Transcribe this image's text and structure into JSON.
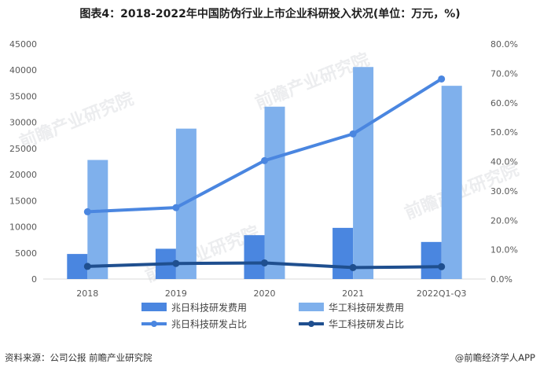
{
  "title": "图表4：2018-2022年中国防伪行业上市企业科研投入状况(单位：万元，%)",
  "source": "资料来源：公司公报 前瞻产业研究院",
  "brand": "@前瞻经济学人APP",
  "watermark": "前瞻产业研究院",
  "colors": {
    "bar_zhaori": "#4a86e0",
    "bar_huagong": "#7fb0ec",
    "line_zhaori": "#4a86e0",
    "line_huagong": "#1f4f8f"
  },
  "chart_data": {
    "type": "bar",
    "categories": [
      "2018",
      "2019",
      "2020",
      "2021",
      "2022Q1-Q3"
    ],
    "series": [
      {
        "name": "兆日科技研发费用",
        "type": "bar",
        "axis": "left",
        "values": [
          4800,
          5800,
          8400,
          9800,
          7100
        ]
      },
      {
        "name": "华工科技研发费用",
        "type": "bar",
        "axis": "left",
        "values": [
          22800,
          28800,
          33000,
          40600,
          37000
        ]
      },
      {
        "name": "兆日科技研发占比",
        "type": "line",
        "axis": "right",
        "values": [
          22.9,
          24.3,
          40.3,
          49.4,
          68.1
        ]
      },
      {
        "name": "华工科技研发占比",
        "type": "line",
        "axis": "right",
        "values": [
          4.3,
          5.3,
          5.5,
          3.9,
          4.2
        ]
      }
    ],
    "y_left": {
      "min": 0,
      "max": 45000,
      "ticks": [
        "0",
        "5000",
        "10000",
        "15000",
        "20000",
        "25000",
        "30000",
        "35000",
        "40000",
        "45000"
      ]
    },
    "y_right": {
      "min": 0,
      "max": 80,
      "ticks": [
        "0.0%",
        "10.0%",
        "20.0%",
        "30.0%",
        "40.0%",
        "50.0%",
        "60.0%",
        "70.0%",
        "80.0%"
      ]
    },
    "grid": false,
    "legend_position": "bottom"
  }
}
